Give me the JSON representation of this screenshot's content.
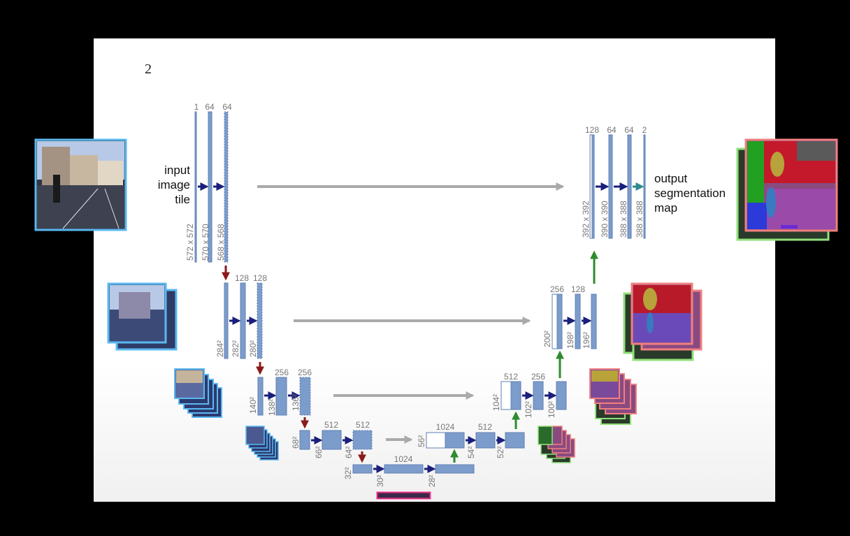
{
  "slide": {
    "page_number": "2"
  },
  "labels": {
    "input": [
      "input",
      "image",
      "tile"
    ],
    "output": [
      "output",
      "segmentation",
      "map"
    ]
  },
  "encoder": {
    "level1": {
      "channels": [
        "1",
        "64",
        "64"
      ],
      "sizes": [
        "572 x 572",
        "570 x 570",
        "568 x 568"
      ]
    },
    "level2": {
      "channels": [
        "128",
        "128"
      ],
      "sizes": [
        "284²",
        "282²",
        "280²"
      ]
    },
    "level3": {
      "channels": [
        "256",
        "256"
      ],
      "sizes": [
        "140²",
        "138²",
        "136²"
      ]
    },
    "level4": {
      "channels": [
        "512",
        "512"
      ],
      "sizes": [
        "68²",
        "66²",
        "64²"
      ]
    },
    "bottleneck": {
      "channels": [
        "1024"
      ],
      "sizes": [
        "32²",
        "30²",
        "28²"
      ]
    }
  },
  "decoder": {
    "level4": {
      "channels": [
        "1024",
        "512"
      ],
      "sizes": [
        "56²",
        "54²",
        "52²"
      ]
    },
    "level3": {
      "channels": [
        "512",
        "256"
      ],
      "sizes": [
        "104²",
        "102²",
        "100²"
      ]
    },
    "level2": {
      "channels": [
        "256",
        "128"
      ],
      "sizes": [
        "200²",
        "198²",
        "196²"
      ]
    },
    "level1": {
      "channels": [
        "128",
        "64",
        "64",
        "2"
      ],
      "sizes": [
        "392 x 392",
        "390 x 390",
        "388 x 388",
        "388 x 388"
      ]
    }
  },
  "colors": {
    "block": "#7c9ccb",
    "block_edge": "#5f7fb3",
    "conv_arrow": "#1a1f7a",
    "pool_arrow": "#8b1a1a",
    "up_arrow": "#2e8b2e",
    "final_arrow": "#2e8b8b",
    "skip_arrow": "#aaaaaa",
    "input_frame": "#5ab9f0",
    "output_frame": "#f08080",
    "output_back_frame": "#8fe07a"
  }
}
